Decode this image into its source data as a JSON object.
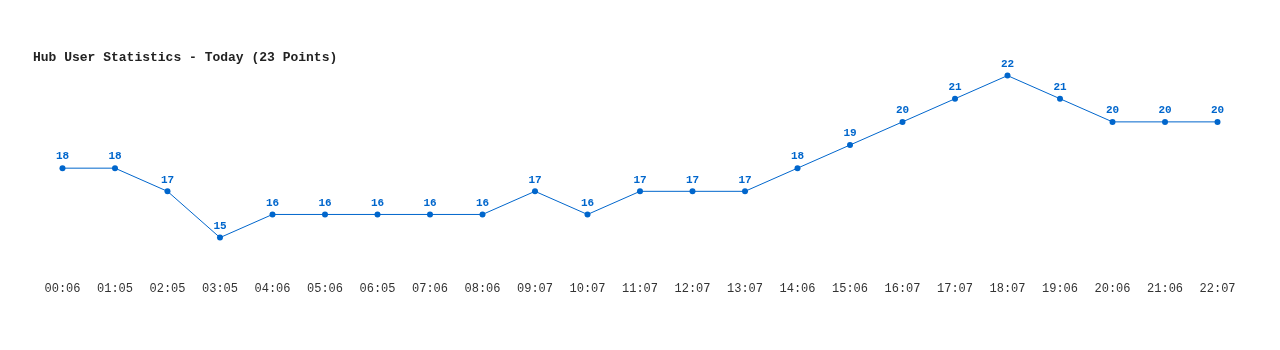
{
  "chart_data": {
    "type": "line",
    "title": "Hub User Statistics - Today (23 Points)",
    "categories": [
      "00:06",
      "01:05",
      "02:05",
      "03:05",
      "04:06",
      "05:06",
      "06:05",
      "07:06",
      "08:06",
      "09:07",
      "10:07",
      "11:07",
      "12:07",
      "13:07",
      "14:06",
      "15:06",
      "16:07",
      "17:07",
      "18:07",
      "19:06",
      "20:06",
      "21:06",
      "22:07"
    ],
    "series": [
      {
        "color": "#0066cc",
        "values": [
          18,
          18,
          17,
          15,
          16,
          16,
          16,
          16,
          16,
          17,
          16,
          17,
          17,
          17,
          18,
          19,
          20,
          21,
          22,
          21,
          20,
          20,
          20
        ]
      }
    ],
    "data_labels": true,
    "marker": "circle",
    "line_style": "solid",
    "grid": false,
    "legend": false
  }
}
